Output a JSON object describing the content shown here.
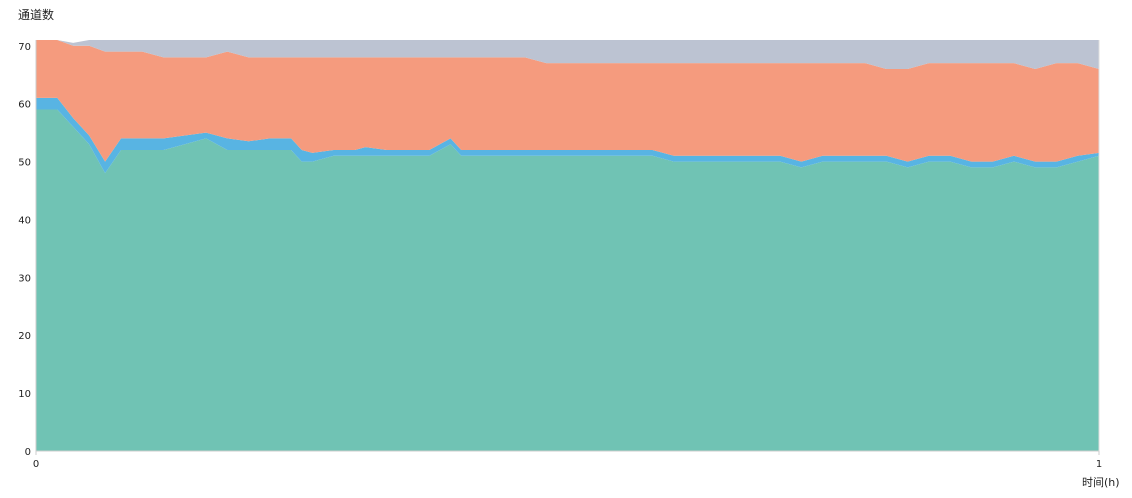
{
  "chart_data": {
    "type": "area",
    "stacked": true,
    "ylabel": "通道数",
    "xlabel": "时间(h)",
    "xlim": [
      0,
      1
    ],
    "ylim": [
      0,
      71
    ],
    "x_ticks": [
      "0",
      "1"
    ],
    "y_ticks": [
      "0",
      "10",
      "20",
      "30",
      "40",
      "50",
      "60",
      "70"
    ],
    "grid": false,
    "legend": "none",
    "x": [
      0,
      0.02,
      0.035,
      0.05,
      0.065,
      0.08,
      0.1,
      0.12,
      0.14,
      0.16,
      0.18,
      0.2,
      0.22,
      0.24,
      0.25,
      0.26,
      0.28,
      0.29,
      0.3,
      0.31,
      0.33,
      0.35,
      0.37,
      0.39,
      0.4,
      0.42,
      0.44,
      0.46,
      0.48,
      0.5,
      0.52,
      0.54,
      0.56,
      0.58,
      0.6,
      0.62,
      0.64,
      0.66,
      0.68,
      0.7,
      0.72,
      0.74,
      0.76,
      0.78,
      0.8,
      0.82,
      0.84,
      0.86,
      0.88,
      0.9,
      0.92,
      0.94,
      0.96,
      0.98,
      1.0
    ],
    "series": [
      {
        "color": "#70c3b4",
        "values": [
          59,
          59,
          56,
          53,
          48,
          52,
          52,
          52,
          53,
          54,
          52,
          52,
          52,
          52,
          50,
          50,
          51,
          51,
          51,
          51,
          51,
          51,
          51,
          53,
          51,
          51,
          51,
          51,
          51,
          51,
          51,
          51,
          51,
          51,
          50,
          50,
          50,
          50,
          50,
          50,
          49,
          50,
          50,
          50,
          50,
          49,
          50,
          50,
          49,
          49,
          50,
          49,
          49,
          50,
          51
        ]
      },
      {
        "color": "#58b4e3",
        "values": [
          2,
          2,
          1.5,
          1.5,
          2,
          2,
          2,
          2,
          1.5,
          1,
          2,
          1.5,
          2,
          2,
          2,
          1.5,
          1,
          1,
          1,
          1.5,
          1,
          1,
          1,
          1,
          1,
          1,
          1,
          1,
          1,
          1,
          1,
          1,
          1,
          1,
          1,
          1,
          1,
          1,
          1,
          1,
          1,
          1,
          1,
          1,
          1,
          1,
          1,
          1,
          1,
          1,
          1,
          1,
          1,
          1,
          0.5
        ]
      },
      {
        "color": "#f59b7e",
        "values": [
          10,
          10,
          12.5,
          15.5,
          19,
          15,
          15,
          14,
          13.5,
          13,
          15,
          14.5,
          14,
          14,
          16,
          16.5,
          16,
          16,
          16,
          15.5,
          16,
          16,
          16,
          14,
          16,
          16,
          16,
          16,
          15,
          15,
          15,
          15,
          15,
          15,
          16,
          16,
          16,
          16,
          16,
          16,
          17,
          16,
          16,
          16,
          15,
          16,
          16,
          16,
          17,
          17,
          16,
          16,
          17,
          16,
          14.5
        ]
      },
      {
        "color": "#bcc3d2",
        "values": [
          0,
          0,
          0.5,
          1,
          2,
          2,
          2,
          3,
          3,
          3,
          2,
          3,
          3,
          3,
          3,
          3,
          3,
          3,
          3,
          3,
          3,
          3,
          3,
          3,
          3,
          3,
          3,
          3,
          4,
          4,
          4,
          4,
          4,
          4,
          4,
          4,
          4,
          4,
          4,
          4,
          4,
          4,
          4,
          4,
          5,
          5,
          4,
          4,
          4,
          4,
          4,
          5,
          4,
          4,
          5
        ]
      }
    ]
  }
}
